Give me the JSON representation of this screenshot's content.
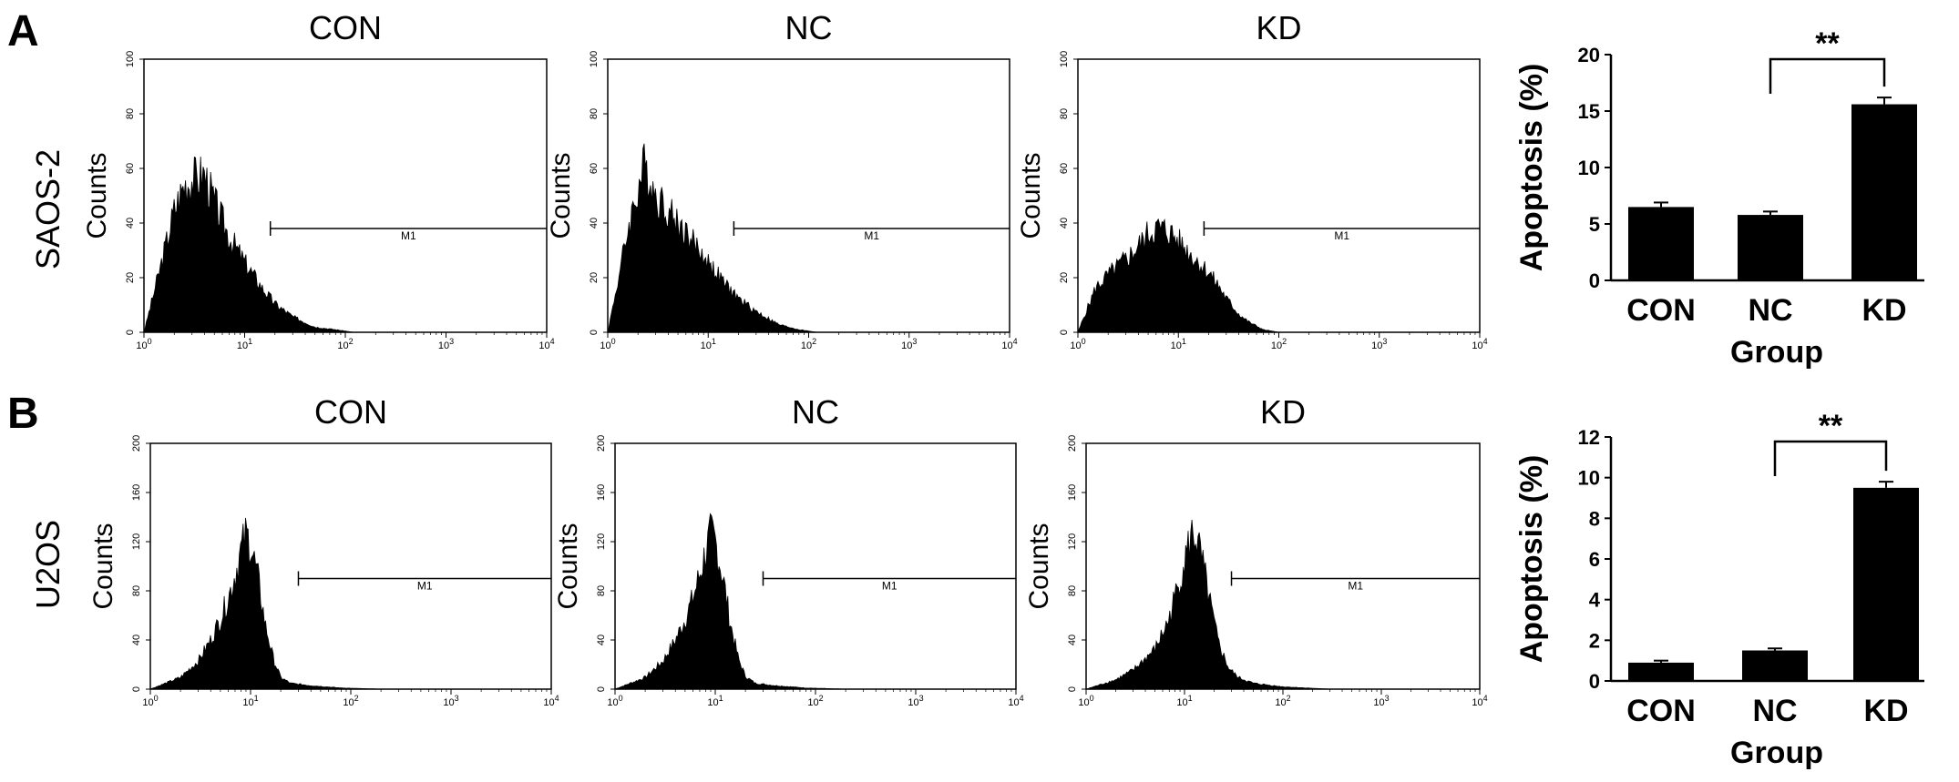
{
  "panels": {
    "A": {
      "letter": "A",
      "row_label": "SAOS-2",
      "histograms": [
        {
          "title": "CON",
          "ylabel": "Counts",
          "yticks": [
            "0",
            "20",
            "40",
            "60",
            "80",
            "100"
          ],
          "ymax": 100,
          "xticks": [
            "10^0",
            "10^1",
            "10^2",
            "10^3",
            "10^4"
          ],
          "marker": "M1"
        },
        {
          "title": "NC",
          "ylabel": "Counts",
          "yticks": [
            "0",
            "20",
            "40",
            "60",
            "80",
            "100"
          ],
          "ymax": 100,
          "xticks": [
            "10^0",
            "10^1",
            "10^2",
            "10^3",
            "10^4"
          ],
          "marker": "M1"
        },
        {
          "title": "KD",
          "ylabel": "Counts",
          "yticks": [
            "0",
            "20",
            "40",
            "60",
            "80",
            "100"
          ],
          "ymax": 100,
          "xticks": [
            "10^0",
            "10^1",
            "10^2",
            "10^3",
            "10^4"
          ],
          "marker": "M1"
        }
      ]
    },
    "B": {
      "letter": "B",
      "row_label": "U2OS",
      "histograms": [
        {
          "title": "CON",
          "ylabel": "Counts",
          "yticks": [
            "0",
            "40",
            "80",
            "120",
            "160",
            "200"
          ],
          "ymax": 200,
          "xticks": [
            "10^0",
            "10^1",
            "10^2",
            "10^3",
            "10^4"
          ],
          "marker": "M1"
        },
        {
          "title": "NC",
          "ylabel": "Counts",
          "yticks": [
            "0",
            "40",
            "80",
            "120",
            "160",
            "200"
          ],
          "ymax": 200,
          "xticks": [
            "10^0",
            "10^1",
            "10^2",
            "10^3",
            "10^4"
          ],
          "marker": "M1"
        },
        {
          "title": "KD",
          "ylabel": "Counts",
          "yticks": [
            "0",
            "40",
            "80",
            "120",
            "160",
            "200"
          ],
          "ymax": 200,
          "xticks": [
            "10^0",
            "10^1",
            "10^2",
            "10^3",
            "10^4"
          ],
          "marker": "M1"
        }
      ]
    }
  },
  "chart_data": [
    {
      "panel": "A",
      "type": "area",
      "title": "CON",
      "xscale": "log",
      "xlim": [
        1,
        10000
      ],
      "ylim": [
        0,
        100
      ],
      "ylabel": "Counts",
      "x": [
        1,
        1.5,
        2,
        2.5,
        3,
        4,
        5,
        7,
        10,
        15,
        20,
        30,
        50,
        80,
        120,
        10000
      ],
      "y": [
        0,
        27,
        47,
        57,
        59,
        61,
        50,
        37,
        27,
        17,
        11,
        6,
        2,
        1,
        0,
        0
      ],
      "gate": {
        "label": "M1",
        "x": [
          18,
          10000
        ],
        "y": 38
      }
    },
    {
      "panel": "A",
      "type": "area",
      "title": "NC",
      "xscale": "log",
      "xlim": [
        1,
        10000
      ],
      "ylim": [
        0,
        100
      ],
      "ylabel": "Counts",
      "x": [
        1,
        1.3,
        1.6,
        2,
        2.3,
        2.6,
        3,
        4,
        5,
        7,
        10,
        15,
        20,
        30,
        50,
        80,
        120,
        200,
        10000
      ],
      "y": [
        0,
        22,
        40,
        55,
        64,
        60,
        53,
        47,
        42,
        35,
        27,
        18,
        13,
        8,
        3,
        1,
        0,
        0,
        0
      ],
      "gate": {
        "label": "M1",
        "x": [
          18,
          10000
        ],
        "y": 38
      }
    },
    {
      "panel": "A",
      "type": "area",
      "title": "KD",
      "xscale": "log",
      "xlim": [
        1,
        10000
      ],
      "ylim": [
        0,
        100
      ],
      "ylabel": "Counts",
      "x": [
        1,
        1.5,
        2,
        3,
        4,
        5,
        6,
        8,
        10,
        15,
        20,
        25,
        30,
        40,
        50,
        70,
        100,
        10000
      ],
      "y": [
        0,
        17,
        22,
        28,
        33,
        38,
        40,
        39,
        35,
        28,
        23,
        18,
        13,
        7,
        4,
        1,
        0,
        0
      ],
      "gate": {
        "label": "M1",
        "x": [
          18,
          10000
        ],
        "y": 38
      }
    },
    {
      "panel": "B",
      "type": "area",
      "title": "CON",
      "xscale": "log",
      "xlim": [
        1,
        10000
      ],
      "ylim": [
        0,
        200
      ],
      "ylabel": "Counts",
      "x": [
        1,
        2,
        3,
        4,
        5,
        6,
        7,
        8,
        9,
        10,
        12,
        14,
        17,
        20,
        25,
        40,
        80,
        200,
        10000
      ],
      "y": [
        0,
        10,
        24,
        42,
        60,
        78,
        98,
        118,
        132,
        125,
        92,
        55,
        25,
        10,
        5,
        3,
        1,
        0,
        0
      ],
      "gate": {
        "label": "M1",
        "x": [
          30,
          10000
        ],
        "y": 90
      }
    },
    {
      "panel": "B",
      "type": "area",
      "title": "NC",
      "xscale": "log",
      "xlim": [
        1,
        10000
      ],
      "ylim": [
        0,
        200
      ],
      "ylabel": "Counts",
      "x": [
        1,
        2,
        3,
        4,
        5,
        6,
        7,
        8,
        9,
        10,
        12,
        14,
        17,
        20,
        25,
        40,
        80,
        200,
        10000
      ],
      "y": [
        0,
        10,
        24,
        42,
        60,
        78,
        98,
        118,
        132,
        126,
        95,
        58,
        26,
        11,
        5,
        3,
        1,
        0,
        0
      ],
      "gate": {
        "label": "M1",
        "x": [
          30,
          10000
        ],
        "y": 90
      }
    },
    {
      "panel": "B",
      "type": "area",
      "title": "KD",
      "xscale": "log",
      "xlim": [
        1,
        10000
      ],
      "ylim": [
        0,
        200
      ],
      "ylabel": "Counts",
      "x": [
        1,
        2,
        3,
        5,
        7,
        9,
        11,
        12,
        13,
        15,
        18,
        22,
        28,
        35,
        50,
        100,
        300,
        10000
      ],
      "y": [
        0,
        8,
        16,
        34,
        60,
        95,
        122,
        133,
        130,
        110,
        75,
        40,
        18,
        10,
        5,
        2,
        0,
        0
      ],
      "gate": {
        "label": "M1",
        "x": [
          30,
          10000
        ],
        "y": 90
      }
    },
    {
      "panel": "A",
      "type": "bar",
      "categories": [
        "CON",
        "NC",
        "KD"
      ],
      "values": [
        6.5,
        5.8,
        15.6
      ],
      "errors": [
        0.4,
        0.3,
        0.6
      ],
      "xlabel": "Group",
      "ylabel": "Apoptosis (%)",
      "ylim": [
        0,
        20
      ],
      "yticks": [
        "0",
        "5",
        "10",
        "15",
        "20"
      ],
      "significance": {
        "label": "**",
        "between": [
          "NC",
          "KD"
        ]
      }
    },
    {
      "panel": "B",
      "type": "bar",
      "categories": [
        "CON",
        "NC",
        "KD"
      ],
      "values": [
        0.9,
        1.5,
        9.5
      ],
      "errors": [
        0.1,
        0.1,
        0.3
      ],
      "xlabel": "Group",
      "ylabel": "Apoptosis (%)",
      "ylim": [
        0,
        12
      ],
      "yticks": [
        "0",
        "2",
        "4",
        "6",
        "8",
        "10",
        "12"
      ],
      "significance": {
        "label": "**",
        "between": [
          "NC",
          "KD"
        ]
      }
    }
  ]
}
